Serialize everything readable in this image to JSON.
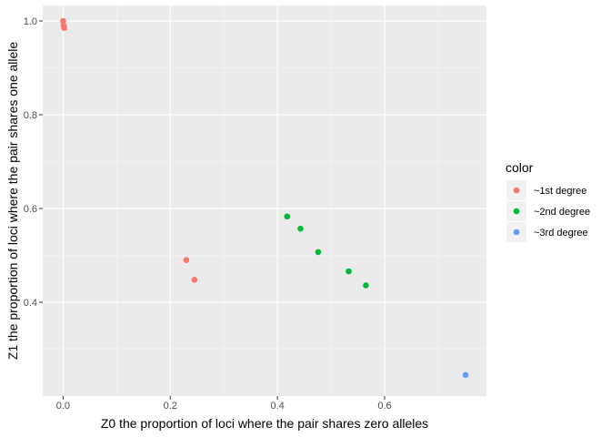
{
  "chart_data": {
    "type": "scatter",
    "xlabel": "Z0 the proportion of loci where the pair shares zero alleles",
    "ylabel": "Z1 the proportion of loci where the pair shares one allele",
    "xlim": [
      -0.038,
      0.79
    ],
    "ylim": [
      0.2,
      1.033
    ],
    "x_ticks": [
      0.0,
      0.2,
      0.4,
      0.6
    ],
    "x_tick_labels": [
      "0.0",
      "0.2",
      "0.4",
      "0.6"
    ],
    "y_ticks": [
      0.4,
      0.6,
      0.8,
      1.0
    ],
    "y_tick_labels": [
      "0.4",
      "0.6",
      "0.8",
      "1.0"
    ],
    "grid": true,
    "background": "#ebebeb",
    "legend": {
      "title": "color",
      "placement": "right",
      "entries": [
        "~1st degree",
        "~2nd degree",
        "~3rd degree"
      ]
    },
    "series": [
      {
        "name": "~1st degree",
        "color": "#f8766d",
        "points": [
          {
            "x": 0.0,
            "y": 1.0
          },
          {
            "x": 0.001,
            "y": 0.99
          },
          {
            "x": 0.002,
            "y": 0.985
          },
          {
            "x": 0.23,
            "y": 0.49
          },
          {
            "x": 0.245,
            "y": 0.448
          }
        ]
      },
      {
        "name": "~2nd degree",
        "color": "#00ba38",
        "points": [
          {
            "x": 0.418,
            "y": 0.583
          },
          {
            "x": 0.443,
            "y": 0.557
          },
          {
            "x": 0.476,
            "y": 0.507
          },
          {
            "x": 0.533,
            "y": 0.466
          },
          {
            "x": 0.565,
            "y": 0.436
          }
        ]
      },
      {
        "name": "~3rd degree",
        "color": "#619cff",
        "points": [
          {
            "x": 0.751,
            "y": 0.245
          }
        ]
      }
    ]
  }
}
